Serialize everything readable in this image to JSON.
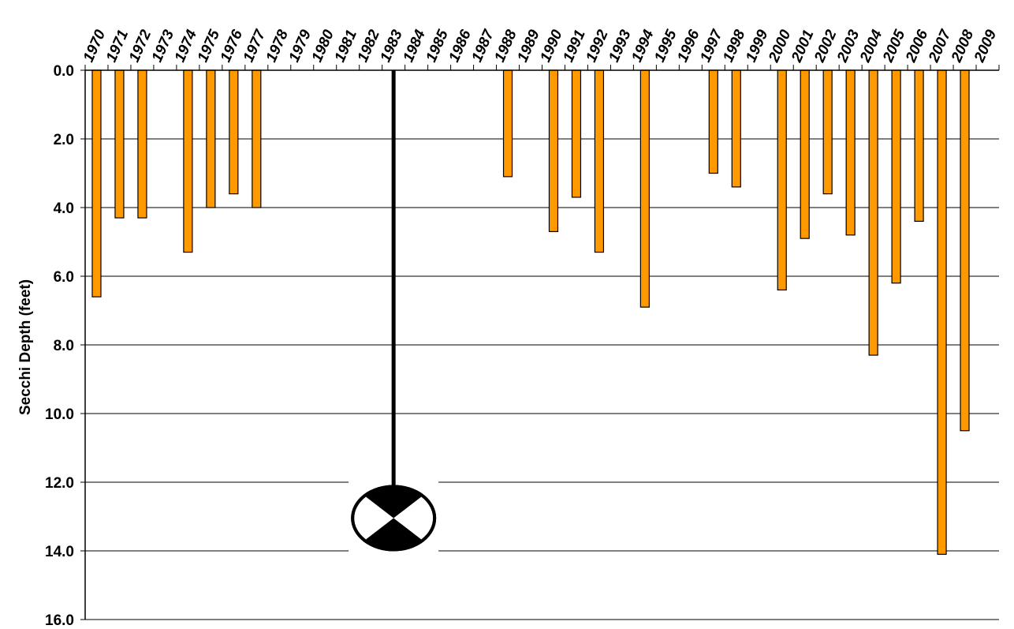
{
  "chart_data": {
    "type": "bar",
    "orientation": "downward",
    "title": "",
    "xlabel": "",
    "ylabel": "Secchi Depth (feet)",
    "ylim": [
      0,
      16
    ],
    "y_ticks": [
      "0.0",
      "2.0",
      "4.0",
      "6.0",
      "8.0",
      "10.0",
      "12.0",
      "14.0",
      "16.0"
    ],
    "y_inverted": true,
    "grid": true,
    "categories": [
      "1970",
      "1971",
      "1972",
      "1973",
      "1974",
      "1975",
      "1976",
      "1977",
      "1978",
      "1979",
      "1980",
      "1981",
      "1982",
      "1983",
      "1984",
      "1985",
      "1986",
      "1987",
      "1988",
      "1989",
      "1990",
      "1991",
      "1992",
      "1993",
      "1994",
      "1995",
      "1996",
      "1997",
      "1998",
      "1999",
      "2000",
      "2001",
      "2002",
      "2003",
      "2004",
      "2005",
      "2006",
      "2007",
      "2008",
      "2009"
    ],
    "values": [
      6.6,
      4.3,
      4.3,
      null,
      5.3,
      4.0,
      3.6,
      4.0,
      null,
      null,
      null,
      null,
      null,
      null,
      null,
      null,
      null,
      null,
      3.1,
      null,
      4.7,
      3.7,
      5.3,
      null,
      6.9,
      null,
      null,
      3.0,
      3.4,
      null,
      6.4,
      4.9,
      3.6,
      4.8,
      8.3,
      6.2,
      4.4,
      14.1,
      10.5,
      null
    ],
    "bar_color": "#ff9900",
    "bar_edge_color": "#000000",
    "secchi_disk_illustration": {
      "category": "1983",
      "depth": 13.0,
      "icon": "secchi-disk-icon"
    }
  }
}
